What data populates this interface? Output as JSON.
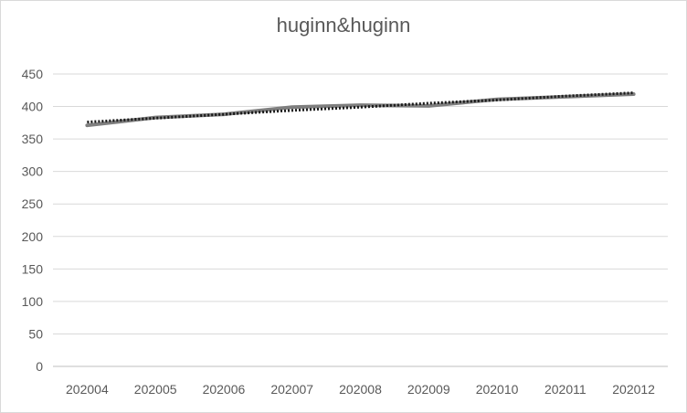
{
  "chart_data": {
    "type": "line",
    "title": "huginn&huginn",
    "xlabel": "",
    "ylabel": "",
    "categories": [
      "202004",
      "202005",
      "202006",
      "202007",
      "202008",
      "202009",
      "202010",
      "202011",
      "202012"
    ],
    "ylim": [
      0,
      450
    ],
    "yticks": [
      0,
      50,
      100,
      150,
      200,
      250,
      300,
      350,
      400,
      450
    ],
    "grid": true,
    "legend": "none",
    "series": [
      {
        "values": [
          371,
          383,
          388,
          399,
          402,
          401,
          411,
          415,
          419
        ],
        "color": "#7f7f7f",
        "style": "solid"
      },
      {
        "values": [
          376,
          382,
          388,
          394,
          399,
          405,
          410,
          416,
          421
        ],
        "color": "#1a1a1a",
        "style": "dotted"
      }
    ]
  }
}
